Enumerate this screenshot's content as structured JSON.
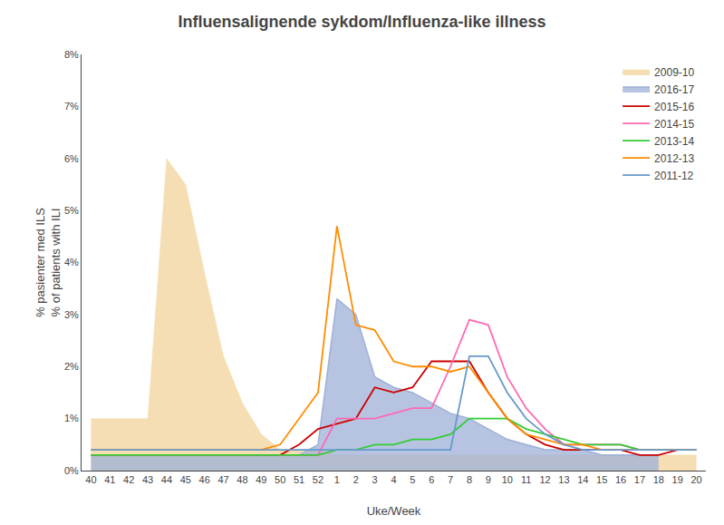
{
  "chart_data": {
    "type": "line",
    "title": "Influensalignende sykdom/Influenza-like illness",
    "xlabel": "Uke/Week",
    "ylabel": "% pasienter med ILS\n% of patients with ILI",
    "categories": [
      40,
      41,
      42,
      43,
      44,
      45,
      46,
      47,
      48,
      49,
      50,
      51,
      52,
      1,
      2,
      3,
      4,
      5,
      6,
      7,
      8,
      9,
      10,
      11,
      12,
      13,
      14,
      15,
      16,
      17,
      18,
      19,
      20
    ],
    "ylim": [
      0,
      0.08
    ],
    "yticks": [
      {
        "value": 0,
        "label": "0%"
      },
      {
        "value": 0.01,
        "label": "1%"
      },
      {
        "value": 0.02,
        "label": "2%"
      },
      {
        "value": 0.03,
        "label": "3%"
      },
      {
        "value": 0.04,
        "label": "4%"
      },
      {
        "value": 0.05,
        "label": "5%"
      },
      {
        "value": 0.06,
        "label": "6%"
      },
      {
        "value": 0.07,
        "label": "7%"
      },
      {
        "value": 0.08,
        "label": "8%"
      }
    ],
    "grid": false,
    "legend": "upper right",
    "series": [
      {
        "name": "2009-10",
        "type": "area",
        "color": "#F5DEB3",
        "values": [
          0.01,
          0.01,
          0.01,
          0.01,
          0.06,
          0.055,
          0.038,
          0.022,
          0.013,
          0.007,
          0.004,
          0.004,
          0.004,
          0.003,
          0.003,
          0.003,
          0.003,
          0.003,
          0.003,
          0.003,
          0.003,
          0.003,
          0.003,
          0.003,
          0.003,
          0.003,
          0.003,
          0.003,
          0.003,
          0.003,
          0.003,
          0.003,
          0.003
        ]
      },
      {
        "name": "2016-17",
        "type": "area",
        "color": "#9EB0D8",
        "values": [
          0.003,
          0.003,
          0.003,
          0.003,
          0.003,
          0.003,
          0.003,
          0.003,
          0.003,
          0.003,
          0.003,
          0.003,
          0.005,
          0.033,
          0.03,
          0.018,
          0.016,
          0.015,
          0.013,
          0.011,
          0.01,
          0.008,
          0.006,
          0.005,
          0.004,
          0.004,
          0.004,
          0.003,
          0.003,
          0.003,
          0.003,
          null,
          null
        ]
      },
      {
        "name": "2015-16",
        "type": "line",
        "color": "#CC0000",
        "values": [
          0.003,
          0.003,
          0.003,
          0.003,
          0.003,
          0.003,
          0.003,
          0.003,
          0.003,
          0.003,
          0.003,
          0.005,
          0.008,
          0.009,
          0.01,
          0.016,
          0.015,
          0.016,
          0.021,
          0.021,
          0.021,
          0.015,
          0.01,
          0.007,
          0.005,
          0.004,
          0.004,
          0.004,
          0.004,
          0.003,
          0.003,
          0.004,
          0.004
        ]
      },
      {
        "name": "2014-15",
        "type": "line",
        "color": "#FF69B4",
        "values": [
          0.003,
          0.003,
          0.003,
          0.003,
          0.003,
          0.003,
          0.003,
          0.003,
          0.003,
          0.003,
          0.003,
          0.003,
          0.003,
          0.01,
          0.01,
          0.01,
          0.011,
          0.012,
          0.012,
          0.02,
          0.029,
          0.028,
          0.018,
          0.012,
          0.008,
          0.005,
          0.005,
          0.005,
          0.005,
          0.004,
          0.004,
          0.004,
          0.004
        ]
      },
      {
        "name": "2013-14",
        "type": "line",
        "color": "#33CC33",
        "values": [
          0.003,
          0.003,
          0.003,
          0.003,
          0.003,
          0.003,
          0.003,
          0.003,
          0.003,
          0.003,
          0.003,
          0.003,
          0.003,
          0.004,
          0.004,
          0.005,
          0.005,
          0.006,
          0.006,
          0.007,
          0.01,
          0.01,
          0.01,
          0.008,
          0.007,
          0.006,
          0.005,
          0.005,
          0.005,
          0.004,
          0.004,
          0.004,
          0.004
        ]
      },
      {
        "name": "2012-13",
        "type": "line",
        "color": "#FF8C00",
        "values": [
          0.004,
          0.004,
          0.004,
          0.004,
          0.004,
          0.004,
          0.004,
          0.004,
          0.004,
          0.004,
          0.005,
          0.01,
          0.015,
          0.047,
          0.028,
          0.027,
          0.021,
          0.02,
          0.02,
          0.019,
          0.02,
          0.015,
          0.01,
          0.007,
          0.006,
          0.005,
          0.005,
          0.004,
          0.004,
          0.004,
          0.004,
          0.004,
          0.004
        ]
      },
      {
        "name": "2011-12",
        "type": "line",
        "color": "#6699CC",
        "values": [
          0.004,
          0.004,
          0.004,
          0.004,
          0.004,
          0.004,
          0.004,
          0.004,
          0.004,
          0.004,
          0.004,
          0.004,
          0.004,
          0.004,
          0.004,
          0.004,
          0.004,
          0.004,
          0.004,
          0.004,
          0.022,
          0.022,
          0.015,
          0.01,
          0.007,
          0.005,
          0.004,
          0.004,
          0.004,
          0.004,
          0.004,
          0.004,
          0.004
        ]
      }
    ]
  }
}
